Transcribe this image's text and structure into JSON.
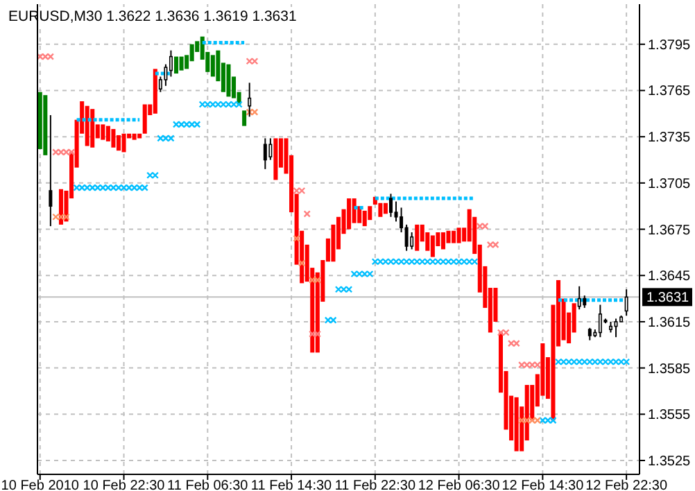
{
  "chart_data": {
    "type": "candlestick",
    "title": "EURUSD,M30  1.3622 1.3636 1.3619 1.3631",
    "xlim": [
      "2010-02-10T14:15",
      "2010-02-12T23:45"
    ],
    "xticks": [
      {
        "value": "2010-02-10T14:30",
        "label": "10 Feb 2010"
      },
      {
        "value": "2010-02-10T22:30",
        "label": "10 Feb 22:30"
      },
      {
        "value": "2010-02-11T06:30",
        "label": "11 Feb 06:30"
      },
      {
        "value": "2010-02-11T14:30",
        "label": "11 Feb 14:30"
      },
      {
        "value": "2010-02-11T22:30",
        "label": "11 Feb 22:30"
      },
      {
        "value": "2010-02-12T06:30",
        "label": "12 Feb 06:30"
      },
      {
        "value": "2010-02-12T14:30",
        "label": "12 Feb 14:30"
      },
      {
        "value": "2010-02-12T22:30",
        "label": "12 Feb 22:30"
      }
    ],
    "ylim": [
      1.3516,
      1.3821
    ],
    "yticks": [
      {
        "value": 1.3525,
        "label": "1.3525"
      },
      {
        "value": 1.3555,
        "label": "1.3555"
      },
      {
        "value": 1.3585,
        "label": "1.3585"
      },
      {
        "value": 1.3615,
        "label": "1.3615"
      },
      {
        "value": 1.3645,
        "label": "1.3645"
      },
      {
        "value": 1.3675,
        "label": "1.3675"
      },
      {
        "value": 1.3705,
        "label": "1.3705"
      },
      {
        "value": 1.3735,
        "label": "1.3735"
      },
      {
        "value": 1.3765,
        "label": "1.3765"
      },
      {
        "value": 1.3795,
        "label": "1.3795"
      }
    ],
    "grid": true,
    "ref_lines": [
      {
        "axis": "y",
        "value": 1.3631,
        "label": "1.3631",
        "color": "#c0c0c0"
      }
    ],
    "series": [
      {
        "type": "bar",
        "color": "#ff0000",
        "x": [
          "2010-02-10T16:30",
          "2010-02-10T17:00",
          "2010-02-10T17:30",
          "2010-02-10T18:00",
          "2010-02-10T18:30",
          "2010-02-10T19:00",
          "2010-02-10T19:30",
          "2010-02-10T20:00",
          "2010-02-10T20:30",
          "2010-02-10T21:00",
          "2010-02-10T21:30",
          "2010-02-10T22:00",
          "2010-02-10T22:30",
          "2010-02-10T23:00",
          "2010-02-10T23:30",
          "2010-02-11T00:00",
          "2010-02-11T00:30",
          "2010-02-11T01:00",
          "2010-02-11T01:30",
          "2010-02-11T13:00",
          "2010-02-11T13:30",
          "2010-02-11T14:00",
          "2010-02-11T14:30",
          "2010-02-11T15:00",
          "2010-02-11T15:30",
          "2010-02-11T16:00",
          "2010-02-11T16:30",
          "2010-02-11T17:00",
          "2010-02-11T17:30",
          "2010-02-11T18:00",
          "2010-02-11T18:30",
          "2010-02-11T19:00",
          "2010-02-11T19:30",
          "2010-02-11T20:00",
          "2010-02-11T20:30",
          "2010-02-11T21:00",
          "2010-02-11T21:30",
          "2010-02-11T22:00",
          "2010-02-11T22:30",
          "2010-02-11T23:00",
          "2010-02-11T23:30",
          "2010-02-12T02:30",
          "2010-02-12T03:00",
          "2010-02-12T03:30",
          "2010-02-12T04:00",
          "2010-02-12T04:30",
          "2010-02-12T05:00",
          "2010-02-12T05:30",
          "2010-02-12T06:00",
          "2010-02-12T06:30",
          "2010-02-12T07:00",
          "2010-02-12T07:30",
          "2010-02-12T08:00",
          "2010-02-12T08:30",
          "2010-02-12T09:00",
          "2010-02-12T09:30",
          "2010-02-12T10:00",
          "2010-02-12T10:30",
          "2010-02-12T11:00",
          "2010-02-12T11:30",
          "2010-02-12T12:00",
          "2010-02-12T12:30",
          "2010-02-12T13:00",
          "2010-02-12T13:30",
          "2010-02-12T14:00",
          "2010-02-12T14:30",
          "2010-02-12T15:00",
          "2010-02-12T15:30",
          "2010-02-12T16:00",
          "2010-02-12T16:30",
          "2010-02-12T17:00",
          "2010-02-12T17:30"
        ],
        "base": [
          1.3678,
          1.368,
          1.3695,
          1.3715,
          1.3737,
          1.3729,
          1.3728,
          1.3734,
          1.3733,
          1.3732,
          1.3728,
          1.3726,
          1.3725,
          1.3734,
          1.3733,
          1.3734,
          1.3737,
          1.3749,
          1.375,
          1.3707,
          1.3715,
          1.3711,
          1.3686,
          1.3652,
          1.364,
          1.3641,
          1.3595,
          1.3595,
          1.3628,
          1.3654,
          1.3654,
          1.3662,
          1.3672,
          1.3675,
          1.3679,
          1.3679,
          1.3677,
          1.3681,
          1.3691,
          1.3683,
          1.3685,
          1.3661,
          1.3667,
          1.3661,
          1.3657,
          1.3664,
          1.3662,
          1.3666,
          1.3666,
          1.3666,
          1.3667,
          1.3667,
          1.3659,
          1.3634,
          1.3624,
          1.3608,
          1.3615,
          1.3569,
          1.3545,
          1.3538,
          1.3531,
          1.3531,
          1.3538,
          1.3551,
          1.356,
          1.3567,
          1.3565,
          1.3551,
          1.3599,
          1.3603,
          1.3601,
          1.3608
        ],
        "values": [
          0.0023,
          0.002,
          0.003,
          0.0031,
          0.0021,
          0.0026,
          0.0025,
          0.0009,
          0.001,
          0.001,
          0.0012,
          0.001,
          0.0012,
          0.0003,
          0.0004,
          0.0003,
          0.0019,
          0.0007,
          0.0029,
          0.0027,
          0.0019,
          0.0023,
          0.0037,
          0.0046,
          0.0034,
          0.0024,
          0.0055,
          0.0052,
          0.0027,
          0.0015,
          0.0024,
          0.0021,
          0.0016,
          0.002,
          0.0016,
          0.0011,
          0.001,
          0.0009,
          0.0005,
          0.0009,
          0.0007,
          0.0017,
          0.0011,
          0.0012,
          0.0014,
          0.0009,
          0.0011,
          0.0008,
          0.0008,
          0.001,
          0.0009,
          0.0021,
          0.0024,
          0.0031,
          0.0027,
          0.0029,
          0.0022,
          0.0039,
          0.0038,
          0.0029,
          0.0035,
          0.0029,
          0.0036,
          0.0023,
          0.0021,
          0.0034,
          0.0027,
          0.0075,
          0.0043,
          0.0027,
          0.002,
          0.0019
        ]
      },
      {
        "type": "bar",
        "color": "#008000",
        "x": [
          "2010-02-10T14:30",
          "2010-02-10T15:00",
          "2010-02-11T03:30",
          "2010-02-11T04:00",
          "2010-02-11T04:30",
          "2010-02-11T05:00",
          "2010-02-11T05:30",
          "2010-02-11T06:00",
          "2010-02-11T06:30",
          "2010-02-11T07:00",
          "2010-02-11T07:30",
          "2010-02-11T08:00",
          "2010-02-11T08:30",
          "2010-02-11T09:00",
          "2010-02-11T09:30",
          "2010-02-11T10:00"
        ],
        "base": [
          1.3727,
          1.3723,
          1.3776,
          1.3778,
          1.3779,
          1.3784,
          1.379,
          1.3785,
          1.3777,
          1.3774,
          1.3771,
          1.3764,
          1.3761,
          1.376,
          1.3756,
          1.3742
        ],
        "values": [
          0.0037,
          0.0039,
          0.0011,
          0.0009,
          0.0009,
          0.0011,
          0.0007,
          0.0015,
          0.0013,
          0.0014,
          0.002,
          0.0019,
          0.0021,
          0.0014,
          0.0008,
          0.001
        ]
      },
      {
        "type": "scatter",
        "color": "#00bfff",
        "marker": "cross",
        "x": [
          "2010-02-10T18:00",
          "2010-02-10T18:30",
          "2010-02-10T19:00",
          "2010-02-10T19:30",
          "2010-02-10T20:00",
          "2010-02-10T20:30",
          "2010-02-10T21:00",
          "2010-02-10T21:30",
          "2010-02-10T22:00",
          "2010-02-10T22:30",
          "2010-02-10T23:00",
          "2010-02-10T23:30",
          "2010-02-11T00:00",
          "2010-02-11T00:30",
          "2010-02-11T01:00",
          "2010-02-11T01:30",
          "2010-02-11T02:00",
          "2010-02-11T02:30",
          "2010-02-11T03:00",
          "2010-02-11T03:30",
          "2010-02-11T04:00",
          "2010-02-11T04:30",
          "2010-02-11T05:00",
          "2010-02-11T05:30",
          "2010-02-11T06:00",
          "2010-02-11T06:30",
          "2010-02-11T07:00",
          "2010-02-11T07:30",
          "2010-02-11T08:00",
          "2010-02-11T08:30",
          "2010-02-11T09:00",
          "2010-02-11T09:30",
          "2010-02-11T18:00",
          "2010-02-11T18:30",
          "2010-02-11T19:00",
          "2010-02-11T19:30",
          "2010-02-11T20:00",
          "2010-02-11T20:30",
          "2010-02-11T21:00",
          "2010-02-11T21:30",
          "2010-02-11T22:00",
          "2010-02-11T22:30",
          "2010-02-11T23:00",
          "2010-02-11T23:30",
          "2010-02-12T00:00",
          "2010-02-12T00:30",
          "2010-02-12T01:00",
          "2010-02-12T01:30",
          "2010-02-12T02:00",
          "2010-02-12T02:30",
          "2010-02-12T03:00",
          "2010-02-12T03:30",
          "2010-02-12T04:00",
          "2010-02-12T04:30",
          "2010-02-12T05:00",
          "2010-02-12T05:30",
          "2010-02-12T06:00",
          "2010-02-12T06:30",
          "2010-02-12T07:00",
          "2010-02-12T07:30",
          "2010-02-12T08:00",
          "2010-02-12T14:30",
          "2010-02-12T15:00",
          "2010-02-12T15:30",
          "2010-02-12T16:00",
          "2010-02-12T16:30",
          "2010-02-12T17:00",
          "2010-02-12T17:30",
          "2010-02-12T18:00",
          "2010-02-12T18:30",
          "2010-02-12T19:00",
          "2010-02-12T19:30",
          "2010-02-12T20:00",
          "2010-02-12T20:30",
          "2010-02-12T21:00",
          "2010-02-12T21:30",
          "2010-02-12T22:00",
          "2010-02-12T22:30"
        ],
        "values": [
          1.3702,
          1.3702,
          1.3702,
          1.3702,
          1.3702,
          1.3702,
          1.3702,
          1.3702,
          1.3702,
          1.3702,
          1.3702,
          1.3702,
          1.3702,
          1.3702,
          1.371,
          1.371,
          1.3734,
          1.3734,
          1.3734,
          1.3743,
          1.3743,
          1.3743,
          1.3743,
          1.3743,
          1.3756,
          1.3756,
          1.3756,
          1.3756,
          1.3756,
          1.3756,
          1.3756,
          1.3756,
          1.3616,
          1.3616,
          1.3636,
          1.3636,
          1.3636,
          1.3646,
          1.3646,
          1.3646,
          1.3646,
          1.3654,
          1.3654,
          1.3654,
          1.3654,
          1.3654,
          1.3654,
          1.3654,
          1.3654,
          1.3654,
          1.3654,
          1.3654,
          1.3654,
          1.3654,
          1.3654,
          1.3654,
          1.3654,
          1.3654,
          1.3654,
          1.3654,
          1.3654,
          1.3551,
          1.3551,
          1.3551,
          1.3589,
          1.3589,
          1.3589,
          1.3589,
          1.3589,
          1.3589,
          1.3589,
          1.3589,
          1.3589,
          1.3589,
          1.3589,
          1.3589,
          1.3589,
          1.3589
        ]
      },
      {
        "type": "scatter",
        "color": "#ff7f7f",
        "marker": "cross",
        "x": [
          "2010-02-10T14:30",
          "2010-02-10T15:00",
          "2010-02-10T15:30",
          "2010-02-10T16:00",
          "2010-02-10T16:30",
          "2010-02-10T17:00",
          "2010-02-10T17:30",
          "2010-02-11T10:30",
          "2010-02-11T11:00",
          "2010-02-11T15:00",
          "2010-02-11T15:30",
          "2010-02-11T16:00",
          "2010-02-11T16:30",
          "2010-02-11T17:00",
          "2010-02-12T08:30",
          "2010-02-12T09:00",
          "2010-02-12T09:30",
          "2010-02-12T10:00",
          "2010-02-12T10:30",
          "2010-02-12T11:00",
          "2010-02-12T11:30",
          "2010-02-12T12:00",
          "2010-02-12T12:30",
          "2010-02-12T13:00",
          "2010-02-12T13:30",
          "2010-02-12T14:00"
        ],
        "values": [
          1.3787,
          1.3787,
          1.3787,
          1.3725,
          1.3725,
          1.3725,
          1.3725,
          1.3784,
          1.3784,
          1.37,
          1.37,
          1.3685,
          1.3607,
          1.3607,
          1.3677,
          1.3677,
          1.3665,
          1.3665,
          1.3608,
          1.3608,
          1.3601,
          1.3601,
          1.3587,
          1.3587,
          1.3587,
          1.3587
        ]
      },
      {
        "type": "scatter",
        "color": "#ff9060",
        "marker": "cross",
        "x": [
          "2010-02-10T16:00",
          "2010-02-10T16:30",
          "2010-02-10T17:00",
          "2010-02-11T10:30",
          "2010-02-11T11:00",
          "2010-02-11T15:00",
          "2010-02-11T15:30",
          "2010-02-11T16:30",
          "2010-02-11T17:00",
          "2010-02-12T12:30",
          "2010-02-12T13:00",
          "2010-02-12T13:30",
          "2010-02-12T14:00"
        ],
        "values": [
          1.3683,
          1.3683,
          1.3683,
          1.3751,
          1.3751,
          1.3669,
          1.3653,
          1.3642,
          1.3642,
          1.3551,
          1.3551,
          1.3551,
          1.3551
        ]
      },
      {
        "type": "line",
        "color": "#00bfff",
        "line_style": "dotted",
        "x": [
          "2010-02-10T18:00",
          "2010-02-11T00:00",
          "2010-02-11T00:30",
          "2010-02-11T01:30",
          "2010-02-11T03:00",
          "2010-02-11T03:30",
          "2010-02-11T06:00",
          "2010-02-11T10:00",
          "2010-02-11T10:30",
          "2010-02-11T20:30",
          "2010-02-11T21:30",
          "2010-02-11T22:00",
          "2010-02-11T22:30",
          "2010-02-12T08:00",
          "2010-02-12T08:30",
          "2010-02-12T16:00",
          "2010-02-12T22:30"
        ],
        "values": [
          1.3746,
          1.3746,
          null,
          1.3776,
          1.3776,
          null,
          1.3796,
          1.3796,
          null,
          1.3689,
          1.3689,
          null,
          1.3695,
          1.3695,
          null,
          1.3629,
          1.3629
        ]
      },
      {
        "type": "candlestick",
        "color": "#000000",
        "x": [
          "2010-02-10T15:30",
          "2010-02-11T02:00",
          "2010-02-11T02:30",
          "2010-02-11T03:00",
          "2010-02-11T10:30",
          "2010-02-11T12:00",
          "2010-02-11T12:30",
          "2010-02-12T00:00",
          "2010-02-12T00:30",
          "2010-02-12T01:00",
          "2010-02-12T01:30",
          "2010-02-12T02:00",
          "2010-02-12T18:00",
          "2010-02-12T18:30",
          "2010-02-12T19:00",
          "2010-02-12T19:30",
          "2010-02-12T20:00",
          "2010-02-12T20:30",
          "2010-02-12T21:00",
          "2010-02-12T21:30",
          "2010-02-12T22:00",
          "2010-02-12T22:30"
        ],
        "ohlc": [
          [
            1.37,
            1.3749,
            1.3677,
            1.369
          ],
          [
            1.3766,
            1.3774,
            1.3764,
            1.3772
          ],
          [
            1.3772,
            1.3782,
            1.3768,
            1.378
          ],
          [
            1.3778,
            1.3791,
            1.3774,
            1.3787
          ],
          [
            1.3755,
            1.377,
            1.3748,
            1.376
          ],
          [
            1.373,
            1.3734,
            1.3714,
            1.372
          ],
          [
            1.3722,
            1.3734,
            1.372,
            1.373
          ],
          [
            1.3695,
            1.3698,
            1.3683,
            1.3686
          ],
          [
            1.3686,
            1.3693,
            1.368,
            1.3683
          ],
          [
            1.3683,
            1.3689,
            1.3673,
            1.3676
          ],
          [
            1.3676,
            1.3678,
            1.3661,
            1.3664
          ],
          [
            1.3664,
            1.3673,
            1.3662,
            1.367
          ],
          [
            1.3625,
            1.3638,
            1.3623,
            1.363
          ],
          [
            1.363,
            1.3632,
            1.3624,
            1.3626
          ],
          [
            1.361,
            1.3611,
            1.3603,
            1.3606
          ],
          [
            1.3606,
            1.361,
            1.3605,
            1.3608
          ],
          [
            1.3608,
            1.3626,
            1.3605,
            1.362
          ],
          [
            1.3616,
            1.3617,
            1.3614,
            1.3615
          ],
          [
            1.361,
            1.3615,
            1.3608,
            1.3612
          ],
          [
            1.3612,
            1.3617,
            1.3605,
            1.3615
          ],
          [
            1.3615,
            1.3619,
            1.3615,
            1.3618
          ],
          [
            1.3622,
            1.3636,
            1.3619,
            1.3631
          ]
        ]
      }
    ]
  }
}
